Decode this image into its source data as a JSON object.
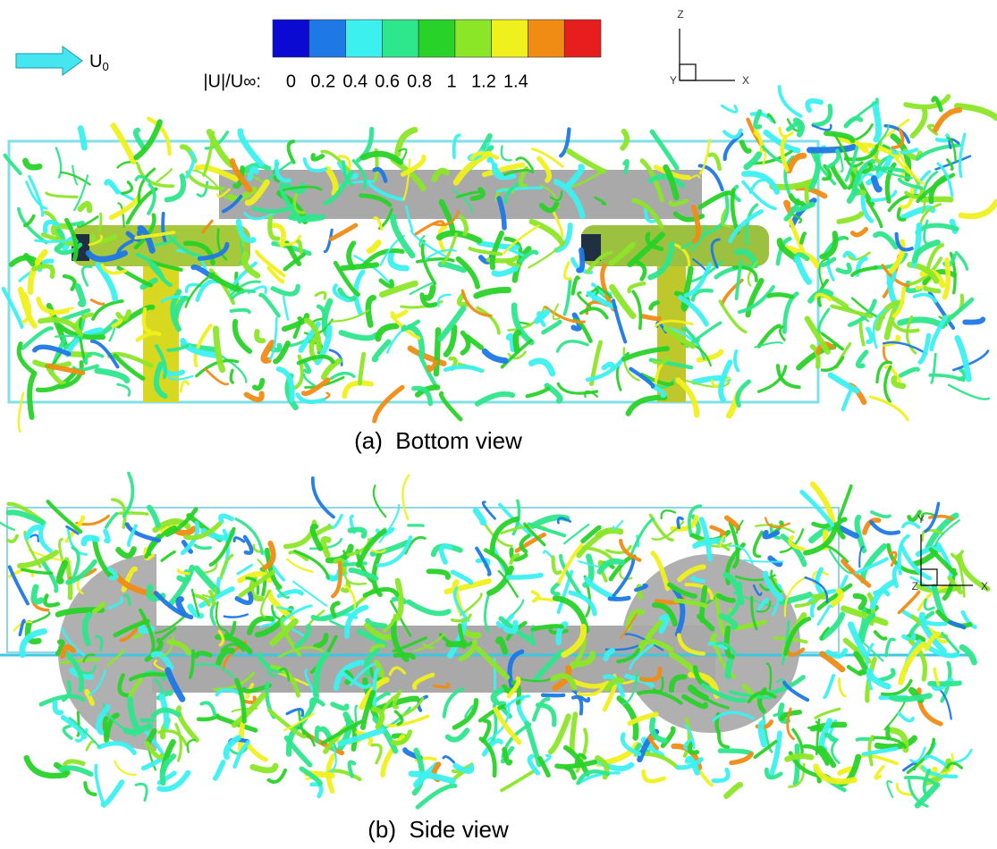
{
  "legend": {
    "flow_label": {
      "base": "U",
      "sub": "0"
    },
    "colorbar": {
      "label": "|U|/U∞:",
      "colors": [
        "#0a0ad2",
        "#1e78e6",
        "#3cf0f0",
        "#2ee68c",
        "#28d228",
        "#8ce628",
        "#f0f01e",
        "#f08c14",
        "#e61e1e"
      ],
      "ticks": [
        0,
        0.2,
        0.4,
        0.6,
        0.8,
        1,
        1.2,
        1.4
      ]
    }
  },
  "panels": [
    {
      "caption": "(a)  Bottom view",
      "axes": {
        "up": "Z",
        "right": "X",
        "origin": "Y"
      }
    },
    {
      "caption": "(b)  Side view",
      "axes": {
        "up": "Y",
        "right": "X",
        "origin": "Z"
      }
    }
  ]
}
